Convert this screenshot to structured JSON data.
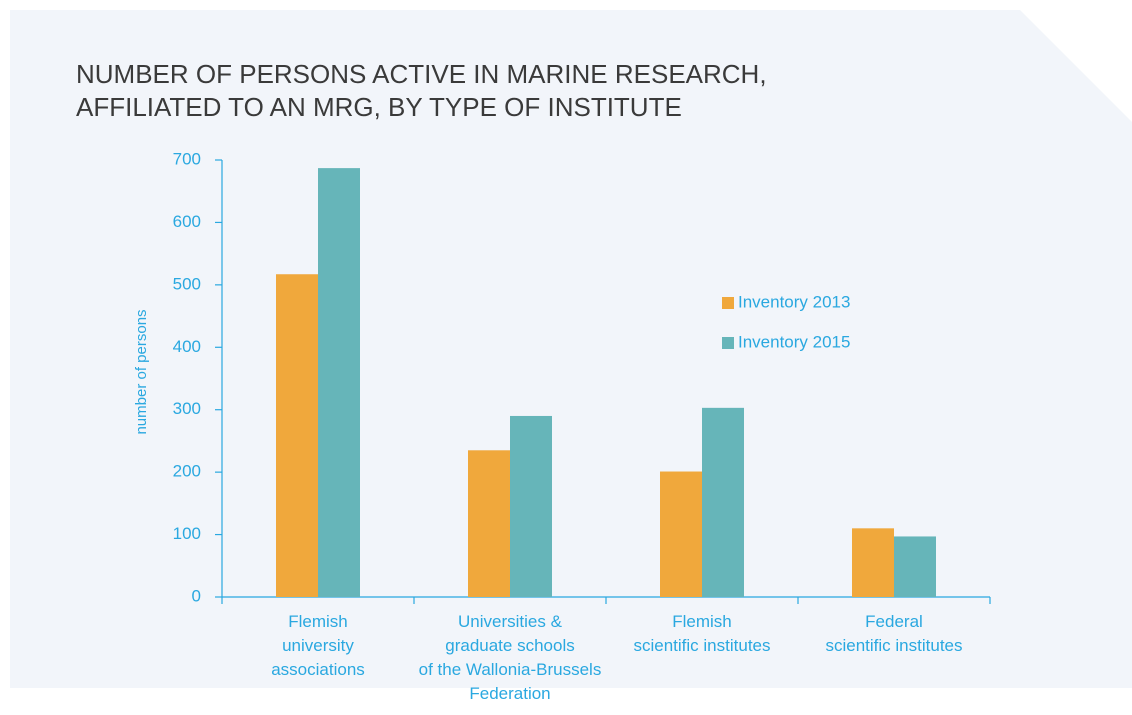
{
  "chart_data": {
    "type": "bar",
    "title": [
      "NUMBER OF PERSONS ACTIVE IN MARINE RESEARCH,",
      "AFFILIATED TO AN MRG, BY TYPE OF INSTITUTE"
    ],
    "y_label": "number of persons",
    "categories": [
      "Flemish\nuniversity\nassociations",
      "Universities &\ngraduate schools\nof the Wallonia-Brussels\nFederation",
      "Flemish\nscientific institutes",
      "Federal\nscientific institutes"
    ],
    "series": [
      {
        "name": "Inventory 2013",
        "color": "#f0a83c",
        "values": [
          517,
          235,
          201,
          110
        ]
      },
      {
        "name": "Inventory 2015",
        "color": "#66b5b9",
        "values": [
          687,
          290,
          303,
          97
        ]
      }
    ],
    "ylim": [
      0,
      700
    ],
    "yticks": [
      0,
      100,
      200,
      300,
      400,
      500,
      600,
      700
    ]
  }
}
